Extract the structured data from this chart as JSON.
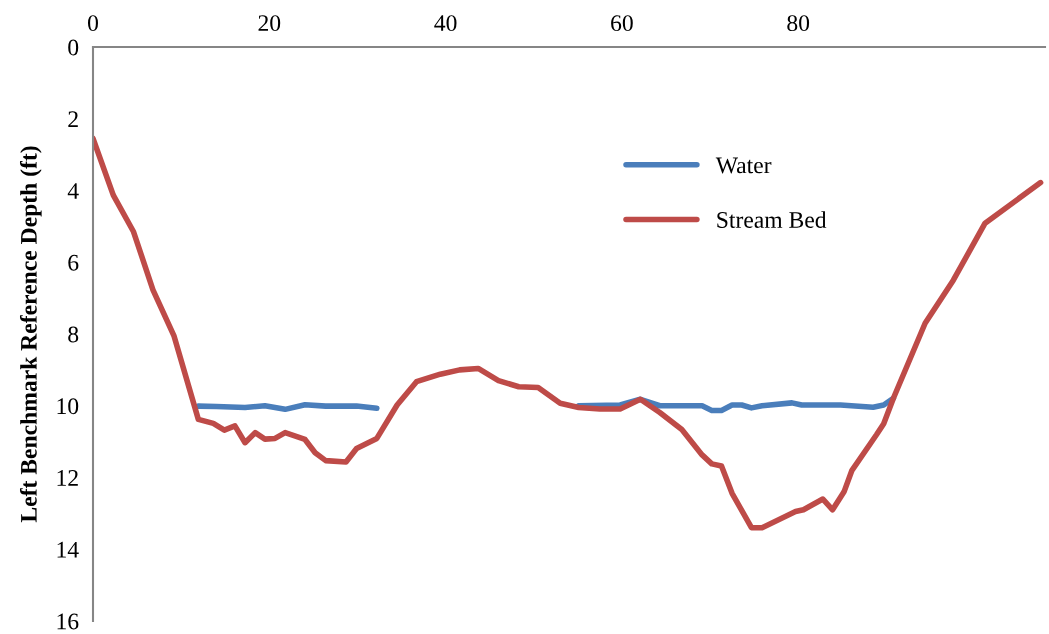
{
  "chart_data": {
    "type": "line",
    "ylabel": "Left Benchmark Reference Depth (ft)",
    "xlim": [
      0,
      108
    ],
    "xticks": [
      0,
      20,
      40,
      60,
      80
    ],
    "ylim": [
      16,
      0
    ],
    "yticks": [
      0,
      2,
      4,
      6,
      8,
      10,
      12,
      14,
      16
    ],
    "grid": false,
    "legend": "top right",
    "marker": "none",
    "line_style": "solid",
    "series": [
      {
        "name": "Water",
        "color": "#4a7ebb",
        "x": [
          11.95,
          14.0,
          17.25,
          19.5,
          21.8,
          24.05,
          26.4,
          29.9,
          32.2,
          43.7,
          55.1,
          59.8,
          62.1,
          64.3,
          69.1,
          70.2,
          71.3,
          72.5,
          73.6,
          74.7,
          75.9,
          79.3,
          80.4,
          84.8,
          88.5,
          89.7,
          90.8
        ],
        "values": [
          10.01,
          10.02,
          10.05,
          10.0,
          10.1,
          9.97,
          10.01,
          10.01,
          10.07,
          null,
          10.0,
          9.98,
          9.82,
          10.0,
          10.0,
          10.13,
          10.13,
          9.98,
          9.98,
          10.06,
          10.0,
          9.92,
          9.98,
          9.98,
          10.04,
          9.98,
          9.79
        ]
      },
      {
        "name": "Stream Bed",
        "color": "#be4b48",
        "x": [
          0,
          2.3,
          4.6,
          6.8,
          9.2,
          11.95,
          13.65,
          14.9,
          16.1,
          17.25,
          18.4,
          19.5,
          20.65,
          21.8,
          24.05,
          25.2,
          26.4,
          28.7,
          29.9,
          32.2,
          34.5,
          36.7,
          39.4,
          41.6,
          43.7,
          46.0,
          48.3,
          50.5,
          53.0,
          55.1,
          57.5,
          59.8,
          62.1,
          64.3,
          66.8,
          69.1,
          70.2,
          71.3,
          72.5,
          74.7,
          75.9,
          79.7,
          80.6,
          82.8,
          83.9,
          85.2,
          86.1,
          88.9,
          89.7,
          90.8,
          94.4,
          97.6,
          101.2,
          107.5
        ],
        "values": [
          2.55,
          4.13,
          5.15,
          6.77,
          8.06,
          10.38,
          10.49,
          10.68,
          10.56,
          11.03,
          10.75,
          10.93,
          10.91,
          10.75,
          10.94,
          11.31,
          11.53,
          11.57,
          11.19,
          10.91,
          9.98,
          9.33,
          9.12,
          9.0,
          8.96,
          9.3,
          9.47,
          9.49,
          9.93,
          10.05,
          10.09,
          10.09,
          9.82,
          10.19,
          10.66,
          11.37,
          11.62,
          11.68,
          12.44,
          13.4,
          13.4,
          12.95,
          12.9,
          12.6,
          12.9,
          12.4,
          11.8,
          10.8,
          10.5,
          9.79,
          7.7,
          6.5,
          4.91,
          3.78
        ]
      }
    ]
  }
}
